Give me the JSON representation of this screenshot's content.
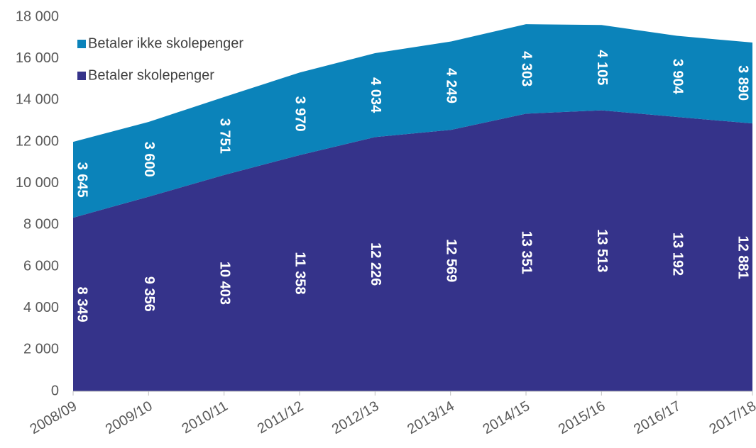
{
  "chart_data": {
    "type": "stacked-area",
    "categories": [
      "2008/09",
      "2009/10",
      "2010/11",
      "2011/12",
      "2012/13",
      "2013/14",
      "2014/15",
      "2015/16",
      "2016/17",
      "2017/18"
    ],
    "series": [
      {
        "name": "Betaler skolepenger",
        "color": "#35338a",
        "values": [
          8349,
          9356,
          10403,
          11358,
          12226,
          12569,
          13351,
          13513,
          13192,
          12881
        ],
        "value_labels": [
          "8 349",
          "9 356",
          "10 403",
          "11 358",
          "12 226",
          "12 569",
          "13 351",
          "13 513",
          "13 192",
          "12 881"
        ]
      },
      {
        "name": "Betaler ikke skolepenger",
        "color": "#0b83ba",
        "values": [
          3645,
          3600,
          3751,
          3970,
          4034,
          4249,
          4303,
          4105,
          3904,
          3890
        ],
        "value_labels": [
          "3 645",
          "3 600",
          "3 751",
          "3 970",
          "4 034",
          "4 249",
          "4 303",
          "4 105",
          "3 904",
          "3 890"
        ]
      }
    ],
    "ylim": [
      0,
      18000
    ],
    "yticks": [
      {
        "value": 0,
        "label": "0"
      },
      {
        "value": 2000,
        "label": "2 000"
      },
      {
        "value": 4000,
        "label": "4 000"
      },
      {
        "value": 6000,
        "label": "6 000"
      },
      {
        "value": 8000,
        "label": "8 000"
      },
      {
        "value": 10000,
        "label": "10 000"
      },
      {
        "value": 12000,
        "label": "12 000"
      },
      {
        "value": 14000,
        "label": "14 000"
      },
      {
        "value": 16000,
        "label": "16 000"
      },
      {
        "value": 18000,
        "label": "18 000"
      }
    ],
    "legend": "top-left"
  }
}
